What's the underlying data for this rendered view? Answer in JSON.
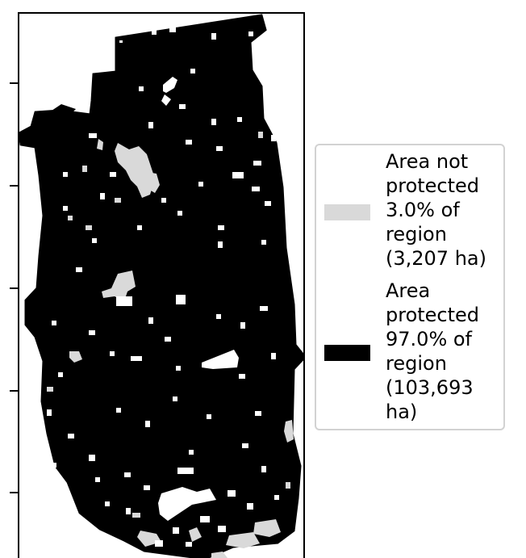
{
  "map": {
    "colors": {
      "not_protected": "#d9d9d9",
      "protected": "#000000",
      "background": "#ffffff",
      "frame": "#000000"
    }
  },
  "legend": {
    "items": [
      {
        "label": "Area not protected 3.0% of region (3,207 ha)",
        "color": "#d9d9d9"
      },
      {
        "label": "Area protected 97.0% of region (103,693 ha)",
        "color": "#000000"
      }
    ],
    "border_color": "#d2d2d2"
  }
}
